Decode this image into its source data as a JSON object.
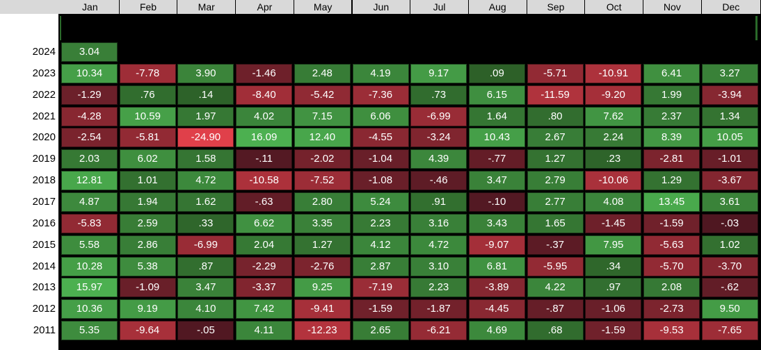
{
  "chart_data": {
    "type": "heatmap",
    "title": "",
    "columns": [
      "Jan",
      "Feb",
      "Mar",
      "Apr",
      "May",
      "Jun",
      "Jul",
      "Aug",
      "Sep",
      "Oct",
      "Nov",
      "Dec"
    ],
    "rows": [
      {
        "year": "2024",
        "values": [
          "3.04"
        ]
      },
      {
        "year": "2023",
        "values": [
          "10.34",
          "-7.78",
          "3.90",
          "-1.46",
          "2.48",
          "4.19",
          "9.17",
          ".09",
          "-5.71",
          "-10.91",
          "6.41",
          "3.27"
        ]
      },
      {
        "year": "2022",
        "values": [
          "-1.29",
          ".76",
          ".14",
          "-8.40",
          "-5.42",
          "-7.36",
          ".73",
          "6.15",
          "-11.59",
          "-9.20",
          "1.99",
          "-3.94"
        ]
      },
      {
        "year": "2021",
        "values": [
          "-4.28",
          "10.59",
          "1.97",
          "4.02",
          "7.15",
          "6.06",
          "-6.99",
          "1.64",
          ".80",
          "7.62",
          "2.37",
          "1.34"
        ]
      },
      {
        "year": "2020",
        "values": [
          "-2.54",
          "-5.81",
          "-24.90",
          "16.09",
          "12.40",
          "-4.55",
          "-3.24",
          "10.43",
          "2.67",
          "2.24",
          "8.39",
          "10.05"
        ]
      },
      {
        "year": "2019",
        "values": [
          "2.03",
          "6.02",
          "1.58",
          "-.11",
          "-2.02",
          "-1.04",
          "4.39",
          "-.77",
          "1.27",
          ".23",
          "-2.81",
          "-1.01"
        ]
      },
      {
        "year": "2018",
        "values": [
          "12.81",
          "1.01",
          "4.72",
          "-10.58",
          "-7.52",
          "-1.08",
          "-.46",
          "3.47",
          "2.79",
          "-10.06",
          "1.29",
          "-3.67"
        ]
      },
      {
        "year": "2017",
        "values": [
          "4.87",
          "1.94",
          "1.62",
          "-.63",
          "2.80",
          "5.24",
          ".91",
          "-.10",
          "2.77",
          "4.08",
          "13.45",
          "3.61"
        ]
      },
      {
        "year": "2016",
        "values": [
          "-5.83",
          "2.59",
          ".33",
          "6.62",
          "3.35",
          "2.23",
          "3.16",
          "3.43",
          "1.65",
          "-1.45",
          "-1.59",
          "-.03"
        ]
      },
      {
        "year": "2015",
        "values": [
          "5.58",
          "2.86",
          "-6.99",
          "2.04",
          "1.27",
          "4.12",
          "4.72",
          "-9.07",
          "-.37",
          "7.95",
          "-5.63",
          "1.02"
        ]
      },
      {
        "year": "2014",
        "values": [
          "10.28",
          "5.38",
          ".87",
          "-2.29",
          "-2.76",
          "2.87",
          "3.10",
          "6.81",
          "-5.95",
          ".34",
          "-5.70",
          "-3.70"
        ]
      },
      {
        "year": "2013",
        "values": [
          "15.97",
          "-1.09",
          "3.47",
          "-3.37",
          "9.25",
          "-7.19",
          "2.23",
          "-3.89",
          "4.22",
          ".97",
          "2.08",
          "-.62"
        ]
      },
      {
        "year": "2012",
        "values": [
          "10.36",
          "9.19",
          "4.10",
          "7.42",
          "-9.41",
          "-1.59",
          "-1.87",
          "-4.45",
          "-.87",
          "-1.06",
          "-2.73",
          "9.50"
        ]
      },
      {
        "year": "2011",
        "values": [
          "5.35",
          "-9.64",
          "-.05",
          "4.11",
          "-12.23",
          "2.65",
          "-6.21",
          "4.69",
          ".68",
          "-1.59",
          "-9.53",
          "-7.65"
        ]
      }
    ],
    "colors": {
      "positive_low": "#2a5a25",
      "positive_high": "#4cb050",
      "negative_low": "#4a1620",
      "negative_high": "#e0404a"
    }
  }
}
